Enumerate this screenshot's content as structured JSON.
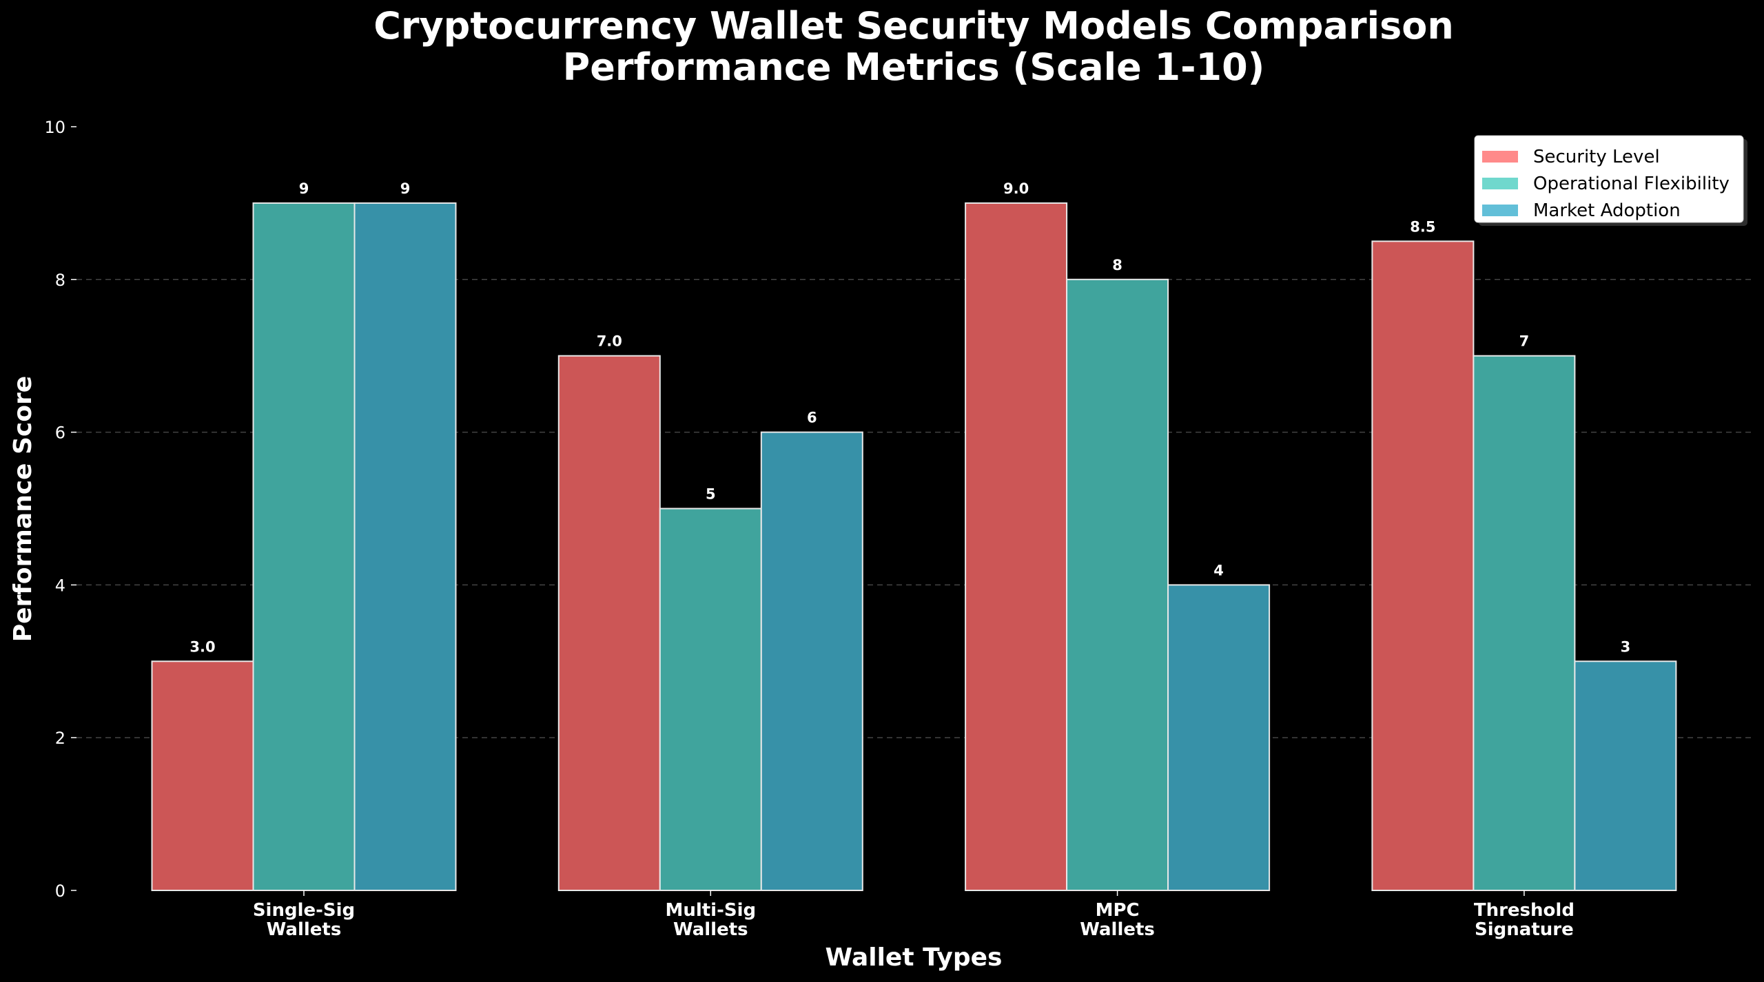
{
  "chart_data": {
    "type": "bar",
    "title": [
      "Cryptocurrency Wallet Security Models Comparison",
      "Performance Metrics (Scale 1-10)"
    ],
    "xlabel": "Wallet Types",
    "ylabel": "Performance Score",
    "ylim": [
      0,
      10
    ],
    "yticks": [
      0,
      2,
      4,
      6,
      8,
      10
    ],
    "grid": "y, dashed",
    "legend_placement": "top-right",
    "categories": [
      [
        "Single-Sig",
        "Wallets"
      ],
      [
        "Multi-Sig",
        "Wallets"
      ],
      [
        "MPC",
        "Wallets"
      ],
      [
        "Threshold",
        "Signature"
      ]
    ],
    "series": [
      {
        "name": "Security Level",
        "values": [
          3.0,
          7.0,
          9.0,
          8.5
        ],
        "labels": [
          "3.0",
          "7.0",
          "9.0",
          "8.5"
        ],
        "color": "#cc5656",
        "legend_color": "#ff8a8a"
      },
      {
        "name": "Operational Flexibility",
        "values": [
          9,
          5,
          8,
          7
        ],
        "labels": [
          "9",
          "5",
          "8",
          "7"
        ],
        "color": "#40a49d",
        "legend_color": "#70d8cd"
      },
      {
        "name": "Market Adoption",
        "values": [
          9,
          6,
          4,
          3
        ],
        "labels": [
          "9",
          "6",
          "4",
          "3"
        ],
        "color": "#3791a8",
        "legend_color": "#62bfd8"
      }
    ]
  }
}
